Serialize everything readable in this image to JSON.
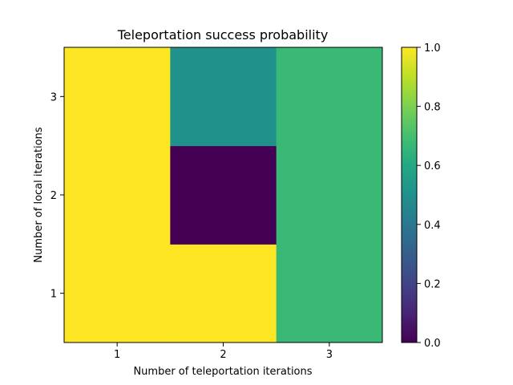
{
  "chart_data": {
    "type": "heatmap",
    "title": "Teleportation success probability",
    "xlabel": "Number of teleportation iterations",
    "ylabel": "Number of local iterations",
    "x_categories": [
      "1",
      "2",
      "3"
    ],
    "y_categories": [
      "1",
      "2",
      "3"
    ],
    "values": [
      [
        1.0,
        1.0,
        0.67
      ],
      [
        1.0,
        0.0,
        0.67
      ],
      [
        1.0,
        0.5,
        0.67
      ]
    ],
    "values_row_order": "y ascending (row 0 = y '1')",
    "colormap": "viridis",
    "colorbar": {
      "range": [
        0.0,
        1.0
      ],
      "ticks": [
        "0.0",
        "0.2",
        "0.4",
        "0.6",
        "0.8",
        "1.0"
      ]
    },
    "grid": false
  }
}
